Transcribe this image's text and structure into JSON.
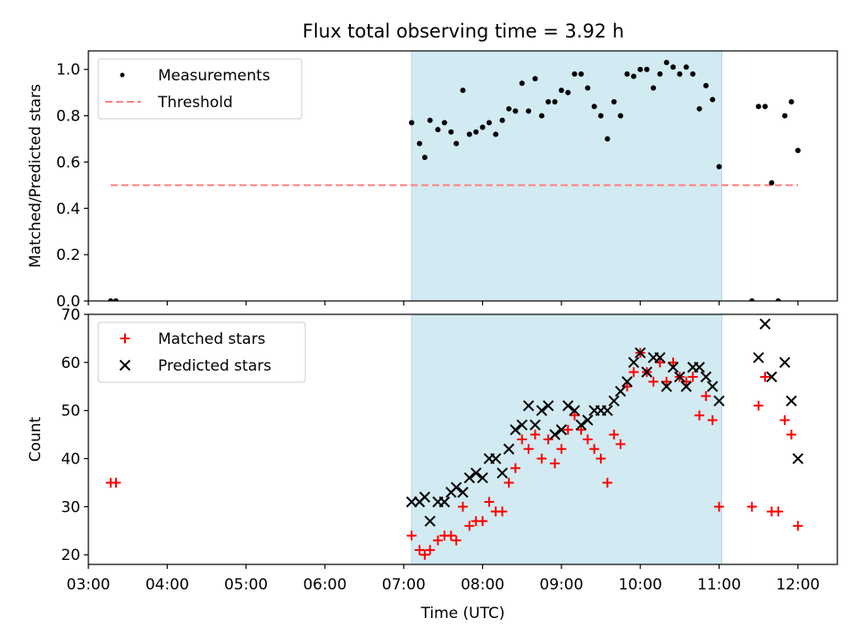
{
  "title": "Flux total observing time = 3.92 h",
  "colors": {
    "shade": "#add8e6",
    "measurement": "#000000",
    "threshold": "#ff7f7f",
    "matched": "#ff0000",
    "predicted": "#000000"
  },
  "chart_data": [
    {
      "type": "scatter",
      "ylabel": "Matched/Predicted stars",
      "ylim": [
        0,
        1.08
      ],
      "yticks": [
        0.0,
        0.2,
        0.4,
        0.6,
        0.8,
        1.0
      ],
      "ytick_labels": [
        "0.0",
        "0.2",
        "0.4",
        "0.6",
        "0.8",
        "1.0"
      ],
      "xlim": [
        "03:00",
        "12:30"
      ],
      "shaded_interval": [
        "07:06",
        "11:02"
      ],
      "legend": {
        "position": "top-left",
        "entries": [
          "Measurements",
          "Threshold"
        ]
      },
      "threshold": {
        "name": "Threshold",
        "y": 0.5,
        "x": [
          "03:17",
          "12:00"
        ]
      },
      "series": [
        {
          "name": "Measurements",
          "marker": "dot",
          "points": [
            [
              "03:17",
              0.0
            ],
            [
              "03:21",
              0.0
            ],
            [
              "07:06",
              0.77
            ],
            [
              "07:12",
              0.68
            ],
            [
              "07:16",
              0.62
            ],
            [
              "07:20",
              0.78
            ],
            [
              "07:26",
              0.74
            ],
            [
              "07:31",
              0.77
            ],
            [
              "07:36",
              0.73
            ],
            [
              "07:40",
              0.68
            ],
            [
              "07:45",
              0.91
            ],
            [
              "07:50",
              0.72
            ],
            [
              "07:55",
              0.73
            ],
            [
              "08:00",
              0.75
            ],
            [
              "08:05",
              0.77
            ],
            [
              "08:10",
              0.72
            ],
            [
              "08:15",
              0.78
            ],
            [
              "08:20",
              0.83
            ],
            [
              "08:25",
              0.82
            ],
            [
              "08:30",
              0.94
            ],
            [
              "08:35",
              0.82
            ],
            [
              "08:40",
              0.96
            ],
            [
              "08:45",
              0.8
            ],
            [
              "08:50",
              0.86
            ],
            [
              "08:55",
              0.86
            ],
            [
              "09:00",
              0.91
            ],
            [
              "09:05",
              0.9
            ],
            [
              "09:10",
              0.98
            ],
            [
              "09:15",
              0.98
            ],
            [
              "09:20",
              0.92
            ],
            [
              "09:25",
              0.84
            ],
            [
              "09:30",
              0.8
            ],
            [
              "09:35",
              0.7
            ],
            [
              "09:40",
              0.86
            ],
            [
              "09:45",
              0.8
            ],
            [
              "09:50",
              0.98
            ],
            [
              "09:55",
              0.97
            ],
            [
              "10:00",
              1.0
            ],
            [
              "10:05",
              1.0
            ],
            [
              "10:10",
              0.92
            ],
            [
              "10:15",
              0.98
            ],
            [
              "10:20",
              1.03
            ],
            [
              "10:25",
              1.01
            ],
            [
              "10:30",
              0.98
            ],
            [
              "10:35",
              1.01
            ],
            [
              "10:40",
              0.98
            ],
            [
              "10:45",
              0.83
            ],
            [
              "10:50",
              0.93
            ],
            [
              "10:55",
              0.87
            ],
            [
              "11:00",
              0.58
            ],
            [
              "11:25",
              0.0
            ],
            [
              "11:30",
              0.84
            ],
            [
              "11:35",
              0.84
            ],
            [
              "11:40",
              0.51
            ],
            [
              "11:45",
              0.0
            ],
            [
              "11:50",
              0.8
            ],
            [
              "11:55",
              0.86
            ],
            [
              "12:00",
              0.65
            ]
          ]
        }
      ]
    },
    {
      "type": "scatter",
      "xlabel": "Time (UTC)",
      "ylabel": "Count",
      "ylim": [
        18,
        70
      ],
      "yticks": [
        20,
        30,
        40,
        50,
        60,
        70
      ],
      "ytick_labels": [
        "20",
        "30",
        "40",
        "50",
        "60",
        "70"
      ],
      "xlim": [
        "03:00",
        "12:30"
      ],
      "xticks": [
        "03:00",
        "04:00",
        "05:00",
        "06:00",
        "07:00",
        "08:00",
        "09:00",
        "10:00",
        "11:00",
        "12:00"
      ],
      "shaded_interval": [
        "07:06",
        "11:02"
      ],
      "legend": {
        "position": "top-left",
        "entries": [
          "Matched stars",
          "Predicted stars"
        ]
      },
      "series": [
        {
          "name": "Matched stars",
          "marker": "plus",
          "points": [
            [
              "03:17",
              35
            ],
            [
              "03:21",
              35
            ],
            [
              "07:06",
              24
            ],
            [
              "07:12",
              21
            ],
            [
              "07:16",
              20
            ],
            [
              "07:20",
              21
            ],
            [
              "07:26",
              23
            ],
            [
              "07:31",
              24
            ],
            [
              "07:36",
              24
            ],
            [
              "07:40",
              23
            ],
            [
              "07:45",
              30
            ],
            [
              "07:50",
              26
            ],
            [
              "07:55",
              27
            ],
            [
              "08:00",
              27
            ],
            [
              "08:05",
              31
            ],
            [
              "08:10",
              29
            ],
            [
              "08:15",
              29
            ],
            [
              "08:20",
              35
            ],
            [
              "08:25",
              38
            ],
            [
              "08:30",
              44
            ],
            [
              "08:35",
              42
            ],
            [
              "08:40",
              45
            ],
            [
              "08:45",
              40
            ],
            [
              "08:50",
              44
            ],
            [
              "08:55",
              39
            ],
            [
              "09:00",
              42
            ],
            [
              "09:05",
              46
            ],
            [
              "09:10",
              49
            ],
            [
              "09:15",
              46
            ],
            [
              "09:20",
              44
            ],
            [
              "09:25",
              42
            ],
            [
              "09:30",
              40
            ],
            [
              "09:35",
              35
            ],
            [
              "09:40",
              45
            ],
            [
              "09:45",
              43
            ],
            [
              "09:50",
              55
            ],
            [
              "09:55",
              58
            ],
            [
              "10:00",
              62
            ],
            [
              "10:05",
              58
            ],
            [
              "10:10",
              56
            ],
            [
              "10:15",
              60
            ],
            [
              "10:20",
              56
            ],
            [
              "10:25",
              60
            ],
            [
              "10:30",
              57
            ],
            [
              "10:35",
              56
            ],
            [
              "10:40",
              57
            ],
            [
              "10:45",
              49
            ],
            [
              "10:50",
              53
            ],
            [
              "10:55",
              48
            ],
            [
              "11:00",
              30
            ],
            [
              "11:25",
              30
            ],
            [
              "11:30",
              51
            ],
            [
              "11:35",
              57
            ],
            [
              "11:40",
              29
            ],
            [
              "11:45",
              29
            ],
            [
              "11:50",
              48
            ],
            [
              "11:55",
              45
            ],
            [
              "12:00",
              26
            ]
          ]
        },
        {
          "name": "Predicted stars",
          "marker": "x",
          "points": [
            [
              "07:06",
              31
            ],
            [
              "07:12",
              31
            ],
            [
              "07:16",
              32
            ],
            [
              "07:20",
              27
            ],
            [
              "07:26",
              31
            ],
            [
              "07:31",
              31
            ],
            [
              "07:36",
              33
            ],
            [
              "07:40",
              34
            ],
            [
              "07:45",
              33
            ],
            [
              "07:50",
              36
            ],
            [
              "07:55",
              37
            ],
            [
              "08:00",
              36
            ],
            [
              "08:05",
              40
            ],
            [
              "08:10",
              40
            ],
            [
              "08:15",
              37
            ],
            [
              "08:20",
              42
            ],
            [
              "08:25",
              46
            ],
            [
              "08:30",
              47
            ],
            [
              "08:35",
              51
            ],
            [
              "08:40",
              47
            ],
            [
              "08:45",
              50
            ],
            [
              "08:50",
              51
            ],
            [
              "08:55",
              45
            ],
            [
              "09:00",
              46
            ],
            [
              "09:05",
              51
            ],
            [
              "09:10",
              50
            ],
            [
              "09:15",
              47
            ],
            [
              "09:20",
              48
            ],
            [
              "09:25",
              50
            ],
            [
              "09:30",
              50
            ],
            [
              "09:35",
              50
            ],
            [
              "09:40",
              52
            ],
            [
              "09:45",
              54
            ],
            [
              "09:50",
              56
            ],
            [
              "09:55",
              60
            ],
            [
              "10:00",
              62
            ],
            [
              "10:05",
              58
            ],
            [
              "10:10",
              61
            ],
            [
              "10:15",
              61
            ],
            [
              "10:20",
              55
            ],
            [
              "10:25",
              59
            ],
            [
              "10:30",
              57
            ],
            [
              "10:35",
              55
            ],
            [
              "10:40",
              59
            ],
            [
              "10:45",
              59
            ],
            [
              "10:50",
              57
            ],
            [
              "10:55",
              55
            ],
            [
              "11:00",
              52
            ],
            [
              "11:30",
              61
            ],
            [
              "11:35",
              68
            ],
            [
              "11:40",
              57
            ],
            [
              "11:50",
              60
            ],
            [
              "11:55",
              52
            ],
            [
              "12:00",
              40
            ]
          ]
        }
      ]
    }
  ]
}
